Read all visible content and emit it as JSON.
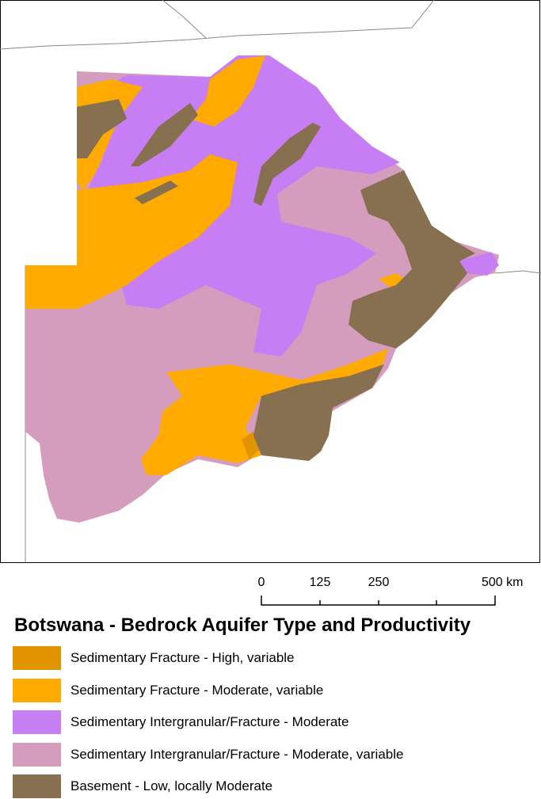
{
  "scale_bar": {
    "labels": [
      "0",
      "125",
      "250",
      "500 km"
    ]
  },
  "legend": {
    "title": "Botswana - Bedrock Aquifer Type and Productivity",
    "items": [
      {
        "label": "Sedimentary Fracture - High, variable",
        "color": "#e09400"
      },
      {
        "label": "Sedimentary Fracture - Moderate, variable",
        "color": "#ffaa00"
      },
      {
        "label": "Sedimentary Intergranular/Fracture - Moderate",
        "color": "#c77df3"
      },
      {
        "label": "Sedimentary Intergranular/Fracture - Moderate, variable",
        "color": "#d49dbd"
      },
      {
        "label": "Basement - Low, locally Moderate",
        "color": "#86704f"
      }
    ]
  }
}
